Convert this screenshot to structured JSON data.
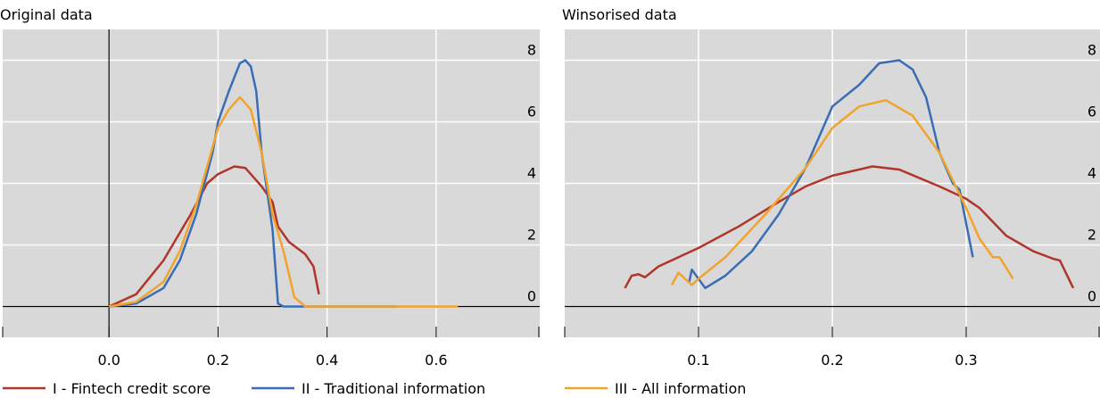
{
  "chart_data": [
    {
      "type": "line",
      "title": "Original data",
      "xlim": [
        -0.195,
        0.79
      ],
      "xticks": [
        {
          "value": 0,
          "label": "0.0"
        },
        0.2,
        0.4,
        0.6
      ],
      "ylim": [
        -1,
        9
      ],
      "yticks": [
        0,
        2,
        4,
        6,
        8
      ],
      "grid": true,
      "series": [
        {
          "name": "I - Fintech credit score",
          "color": "#b0362c",
          "x": [
            0,
            0.05,
            0.1,
            0.15,
            0.18,
            0.2,
            0.23,
            0.25,
            0.28,
            0.3,
            0.31,
            0.33,
            0.36,
            0.375,
            0.385
          ],
          "values": [
            0,
            0.4,
            1.5,
            3.0,
            4.0,
            4.3,
            4.55,
            4.5,
            3.9,
            3.4,
            2.6,
            2.1,
            1.7,
            1.3,
            0.4
          ]
        },
        {
          "name": "II - Traditional information",
          "color": "#3a6db4",
          "x": [
            0,
            0.05,
            0.1,
            0.13,
            0.16,
            0.19,
            0.2,
            0.22,
            0.24,
            0.25,
            0.26,
            0.27,
            0.28,
            0.3,
            0.31,
            0.32,
            0.53
          ],
          "values": [
            0,
            0.1,
            0.6,
            1.5,
            3.0,
            5.0,
            6.0,
            7.0,
            7.9,
            8.0,
            7.8,
            7.0,
            5.0,
            2.5,
            0.1,
            0,
            0
          ]
        },
        {
          "name": "III - All information",
          "color": "#f0a42c",
          "x": [
            0,
            0.05,
            0.1,
            0.13,
            0.16,
            0.2,
            0.22,
            0.24,
            0.26,
            0.28,
            0.3,
            0.32,
            0.34,
            0.36,
            0.64
          ],
          "values": [
            0,
            0.15,
            0.8,
            1.8,
            3.3,
            5.8,
            6.4,
            6.8,
            6.4,
            5.0,
            3.0,
            1.8,
            0.3,
            0,
            0
          ]
        }
      ]
    },
    {
      "type": "line",
      "title": "Winsorised data",
      "xlim": [
        0,
        0.4
      ],
      "xticks": [
        0.1,
        0.2,
        0.3
      ],
      "ylim": [
        -1,
        9
      ],
      "yticks": [
        0,
        2,
        4,
        6,
        8
      ],
      "grid": true,
      "series": [
        {
          "name": "I - Fintech credit score",
          "color": "#b0362c",
          "x": [
            0.045,
            0.05,
            0.055,
            0.06,
            0.07,
            0.1,
            0.13,
            0.16,
            0.18,
            0.2,
            0.23,
            0.25,
            0.28,
            0.3,
            0.31,
            0.33,
            0.35,
            0.365,
            0.37,
            0.38
          ],
          "values": [
            0.6,
            1.0,
            1.05,
            0.95,
            1.3,
            1.9,
            2.6,
            3.4,
            3.9,
            4.25,
            4.55,
            4.45,
            3.9,
            3.5,
            3.2,
            2.3,
            1.8,
            1.55,
            1.5,
            0.6
          ]
        },
        {
          "name": "II - Traditional information",
          "color": "#3a6db4",
          "x": [
            0.093,
            0.095,
            0.105,
            0.12,
            0.14,
            0.16,
            0.18,
            0.19,
            0.2,
            0.22,
            0.235,
            0.25,
            0.26,
            0.27,
            0.28,
            0.29,
            0.295,
            0.305
          ],
          "values": [
            0.8,
            1.2,
            0.6,
            1.0,
            1.8,
            3.0,
            4.5,
            5.5,
            6.5,
            7.2,
            7.9,
            8.0,
            7.7,
            6.8,
            5.0,
            4.0,
            3.8,
            1.6
          ]
        },
        {
          "name": "III - All information",
          "color": "#f0a42c",
          "x": [
            0.08,
            0.085,
            0.095,
            0.1,
            0.12,
            0.15,
            0.18,
            0.2,
            0.22,
            0.24,
            0.26,
            0.28,
            0.3,
            0.31,
            0.32,
            0.325,
            0.335
          ],
          "values": [
            0.7,
            1.1,
            0.7,
            0.9,
            1.6,
            3.0,
            4.5,
            5.8,
            6.5,
            6.7,
            6.2,
            5.0,
            3.2,
            2.2,
            1.6,
            1.6,
            0.9
          ]
        }
      ]
    }
  ]
}
